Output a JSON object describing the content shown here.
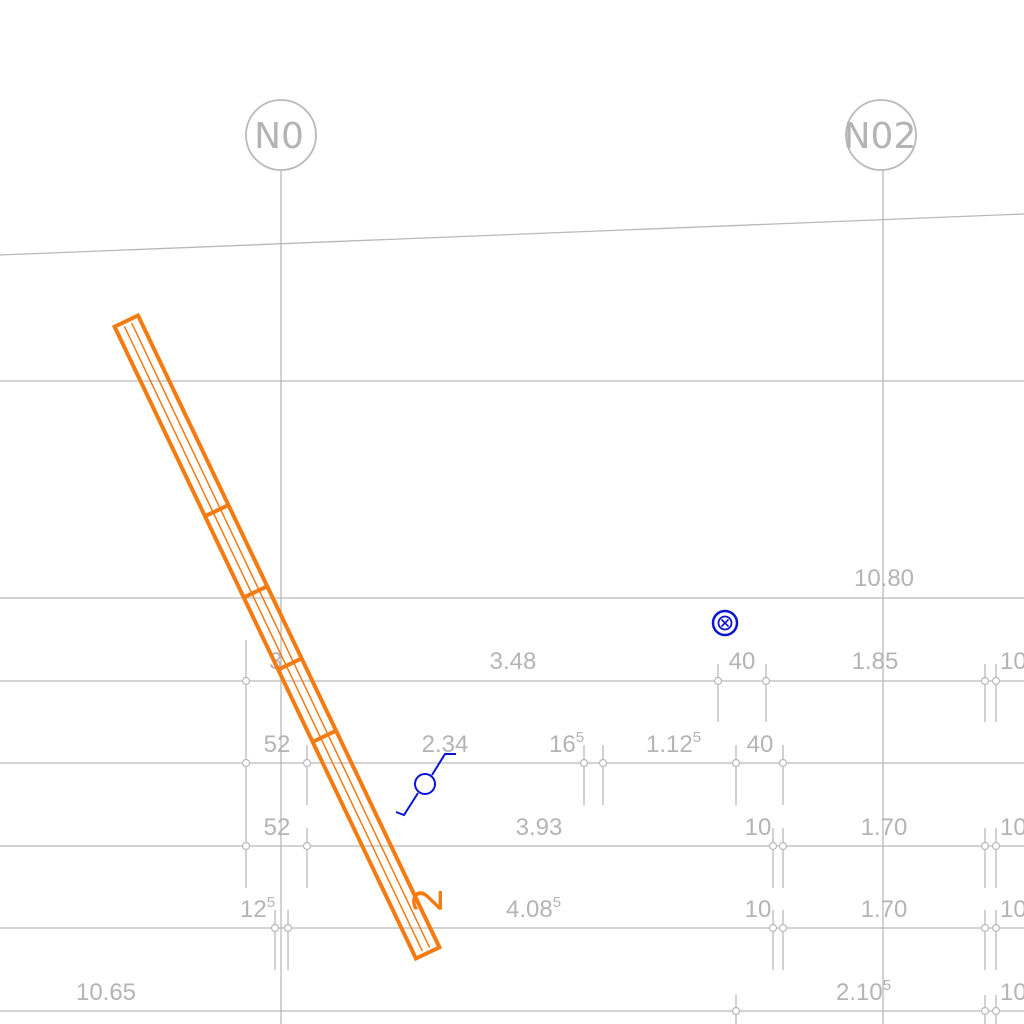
{
  "axes": [
    {
      "label": "N0"
    },
    {
      "label": "N02"
    }
  ],
  "dimensions": [
    {
      "text": "10.80",
      "sup": ""
    },
    {
      "text": "3.48",
      "sup": ""
    },
    {
      "text": "40",
      "sup": ""
    },
    {
      "text": "1.85",
      "sup": ""
    },
    {
      "text": "10",
      "sup": ""
    },
    {
      "text": "52",
      "sup": ""
    },
    {
      "text": "2.34",
      "sup": ""
    },
    {
      "text": "16",
      "sup": "5"
    },
    {
      "text": "1.12",
      "sup": "5"
    },
    {
      "text": "40",
      "sup": ""
    },
    {
      "text": "52",
      "sup": ""
    },
    {
      "text": "3.93",
      "sup": ""
    },
    {
      "text": "10",
      "sup": ""
    },
    {
      "text": "1.70",
      "sup": ""
    },
    {
      "text": "10",
      "sup": ""
    },
    {
      "text": "12",
      "sup": "5"
    },
    {
      "text": "4.08",
      "sup": "5"
    },
    {
      "text": "10",
      "sup": ""
    },
    {
      "text": "1.70",
      "sup": ""
    },
    {
      "text": "10",
      "sup": ""
    },
    {
      "text": "10.65",
      "sup": ""
    },
    {
      "text": "2.10",
      "sup": "5"
    },
    {
      "text": "10",
      "sup": ""
    },
    {
      "text": "3",
      "sup": ""
    }
  ],
  "beam": {
    "label": "2",
    "color": "#f47a12"
  },
  "symbols": {
    "column_marker": "circled-x-icon",
    "section_marker": "section-cut-icon",
    "color": "#0a14d2"
  }
}
